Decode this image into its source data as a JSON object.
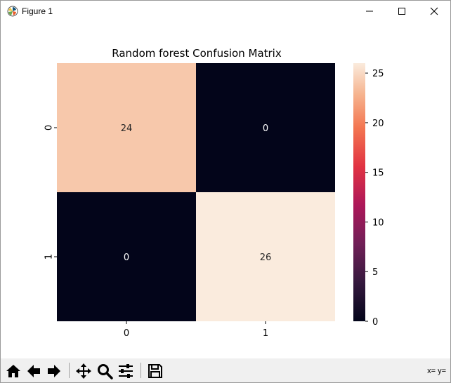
{
  "window": {
    "title": "Figure 1",
    "icon": "matplotlib-icon",
    "controls": [
      "minimize-icon",
      "maximize-icon",
      "close-icon"
    ]
  },
  "toolbar": {
    "buttons": [
      {
        "name": "home-button",
        "icon": "home-icon"
      },
      {
        "name": "back-button",
        "icon": "arrow-left-icon"
      },
      {
        "name": "forward-button",
        "icon": "arrow-right-icon"
      },
      {
        "name": "pan-button",
        "icon": "move-icon"
      },
      {
        "name": "zoom-button",
        "icon": "magnifier-icon"
      },
      {
        "name": "configure-subplots-button",
        "icon": "sliders-icon"
      },
      {
        "name": "save-button",
        "icon": "floppy-disk-icon"
      }
    ],
    "coords_label": "x= y="
  },
  "chart_data": {
    "type": "heatmap",
    "title": "Random forest Confusion Matrix",
    "xlabel": "",
    "ylabel": "",
    "x_categories": [
      "0",
      "1"
    ],
    "y_categories": [
      "0",
      "1"
    ],
    "values": [
      [
        24,
        0
      ],
      [
        0,
        26
      ]
    ],
    "annotations": [
      "24",
      "0",
      "0",
      "26"
    ],
    "colorbar": {
      "range": [
        0,
        26
      ],
      "ticks": [
        0,
        5,
        10,
        15,
        20,
        25
      ],
      "tick_labels": [
        "0",
        "5",
        "10",
        "15",
        "20",
        "25"
      ]
    },
    "colormap": "rocket",
    "colors": {
      "cell_24": "#f5cbad",
      "cell_26": "#faebdd",
      "cell_0": "#03051a"
    },
    "grid": false
  }
}
